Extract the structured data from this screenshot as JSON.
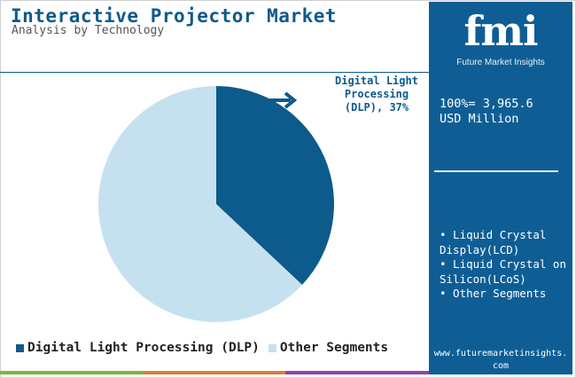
{
  "header": {
    "title": "Interactive Projector Market",
    "subtitle": "Analysis by Technology"
  },
  "chart_data": {
    "type": "pie",
    "title": "Interactive Projector Market",
    "subtitle": "Analysis by Technology",
    "slices": [
      {
        "label": "Digital Light Processing (DLP)",
        "value": 37,
        "color": "#0d5a8c"
      },
      {
        "label": "Other Segments",
        "value": 63,
        "color": "#c5e1f0"
      }
    ],
    "annotation": {
      "label": "Digital Light Processing (DLP), 37%",
      "target": "Digital Light Processing (DLP)"
    },
    "legend_position": "bottom"
  },
  "callout": {
    "lines": [
      "Digital Light",
      "Processing",
      "(DLP), 37%"
    ],
    "arrow_color": "#0d5a8c"
  },
  "legend": {
    "items": [
      {
        "label": "Digital Light Processing (DLP)",
        "color": "#0d5a8c"
      },
      {
        "label": "Other Segments",
        "color": "#c5e1f0"
      }
    ]
  },
  "sidebar": {
    "logo": "fmi",
    "logo_subtitle": "Future Market Insights",
    "total_line1": "100%= 3,965.6",
    "total_line2": "USD Million",
    "segments": [
      "• Liquid Crystal Display(LCD)",
      "• Liquid Crystal on Silicon(LCoS)",
      "• Other Segments"
    ],
    "url": "www.futuremarketinsights.com"
  },
  "colors": {
    "primary": "#0d5a8c",
    "light": "#c5e1f0",
    "panel": "#0e5e95",
    "footer": [
      "#7cb342",
      "#e07b39",
      "#8e44ad"
    ]
  }
}
